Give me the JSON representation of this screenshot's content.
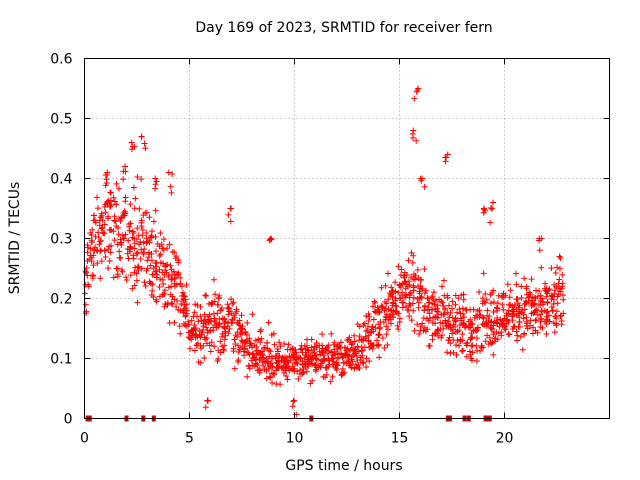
{
  "chart_data": {
    "type": "scatter",
    "title": "Day 169 of 2023, SRMTID for receiver fern",
    "xlabel": "GPS time / hours",
    "ylabel": "SRMTID / TECUs",
    "xlim": [
      0,
      25
    ],
    "ylim": [
      0,
      0.6
    ],
    "xticks": [
      0,
      5,
      10,
      15,
      20
    ],
    "xtick_labels": [
      "0",
      "5",
      "10",
      "15",
      "20"
    ],
    "yticks": [
      0,
      0.1,
      0.2,
      0.3,
      0.4,
      0.5,
      0.6
    ],
    "ytick_labels": [
      "0",
      "0.1",
      "0.2",
      "0.3",
      "0.4",
      "0.5",
      "0.6"
    ],
    "grid": true,
    "marker": "+",
    "color": "#ff0000",
    "series": [
      {
        "name": "SRMTID",
        "x": [
          0.0,
          0.2,
          0.4,
          0.6,
          0.8,
          1.0,
          1.2,
          1.4,
          1.6,
          1.8,
          2.0,
          2.2,
          2.4,
          2.6,
          2.8,
          3.0,
          3.2,
          3.4,
          3.6,
          3.8,
          4.0,
          4.2,
          4.4,
          4.6,
          4.8,
          5.0,
          5.2,
          5.4,
          5.6,
          5.8,
          6.0,
          6.2,
          6.4,
          6.6,
          6.8,
          7.0,
          7.2,
          7.4,
          7.6,
          7.8,
          8.0,
          8.2,
          8.4,
          8.6,
          8.8,
          9.0,
          9.2,
          9.4,
          9.6,
          9.8,
          10.0,
          10.2,
          10.4,
          10.6,
          10.8,
          11.0,
          11.2,
          11.4,
          11.6,
          11.8,
          12.0,
          12.2,
          12.4,
          12.6,
          12.8,
          13.0,
          13.2,
          13.4,
          13.6,
          13.8,
          14.0,
          14.2,
          14.4,
          14.6,
          14.8,
          15.0,
          15.2,
          15.4,
          15.6,
          15.8,
          16.0,
          16.2,
          16.4,
          16.6,
          16.8,
          17.0,
          17.2,
          17.4,
          17.6,
          17.8,
          18.0,
          18.2,
          18.4,
          18.6,
          18.8,
          19.0,
          19.2,
          19.4,
          19.6,
          19.8,
          20.0,
          20.2,
          20.4,
          20.6,
          20.8,
          21.0,
          21.2,
          21.4,
          21.6,
          21.8,
          22.0,
          22.2,
          22.4,
          22.6,
          22.8
        ],
        "y": [
          0.22,
          0.26,
          0.28,
          0.3,
          0.32,
          0.34,
          0.33,
          0.32,
          0.31,
          0.32,
          0.31,
          0.3,
          0.31,
          0.3,
          0.29,
          0.28,
          0.27,
          0.26,
          0.25,
          0.24,
          0.24,
          0.23,
          0.22,
          0.2,
          0.18,
          0.16,
          0.15,
          0.14,
          0.14,
          0.15,
          0.16,
          0.17,
          0.16,
          0.15,
          0.15,
          0.16,
          0.15,
          0.14,
          0.13,
          0.12,
          0.12,
          0.11,
          0.11,
          0.11,
          0.1,
          0.1,
          0.09,
          0.09,
          0.09,
          0.09,
          0.09,
          0.09,
          0.1,
          0.1,
          0.1,
          0.1,
          0.1,
          0.1,
          0.1,
          0.1,
          0.1,
          0.1,
          0.1,
          0.1,
          0.11,
          0.11,
          0.12,
          0.13,
          0.14,
          0.15,
          0.16,
          0.17,
          0.18,
          0.19,
          0.2,
          0.2,
          0.21,
          0.22,
          0.21,
          0.2,
          0.19,
          0.19,
          0.18,
          0.18,
          0.17,
          0.17,
          0.16,
          0.16,
          0.16,
          0.15,
          0.15,
          0.15,
          0.15,
          0.16,
          0.16,
          0.17,
          0.17,
          0.17,
          0.17,
          0.17,
          0.17,
          0.18,
          0.18,
          0.18,
          0.18,
          0.18,
          0.18,
          0.18,
          0.18,
          0.18,
          0.18,
          0.18,
          0.19,
          0.19,
          0.19
        ],
        "spread": [
          0.05,
          0.06,
          0.07,
          0.07,
          0.08,
          0.08,
          0.08,
          0.07,
          0.07,
          0.07,
          0.07,
          0.08,
          0.08,
          0.08,
          0.07,
          0.07,
          0.07,
          0.07,
          0.06,
          0.06,
          0.06,
          0.06,
          0.06,
          0.05,
          0.05,
          0.05,
          0.05,
          0.05,
          0.05,
          0.05,
          0.05,
          0.05,
          0.05,
          0.05,
          0.05,
          0.05,
          0.05,
          0.04,
          0.04,
          0.04,
          0.04,
          0.04,
          0.04,
          0.04,
          0.04,
          0.04,
          0.04,
          0.03,
          0.03,
          0.03,
          0.03,
          0.03,
          0.03,
          0.03,
          0.03,
          0.03,
          0.03,
          0.03,
          0.03,
          0.03,
          0.03,
          0.03,
          0.03,
          0.03,
          0.03,
          0.04,
          0.04,
          0.04,
          0.04,
          0.05,
          0.05,
          0.05,
          0.05,
          0.05,
          0.05,
          0.05,
          0.05,
          0.05,
          0.05,
          0.05,
          0.05,
          0.05,
          0.05,
          0.05,
          0.05,
          0.05,
          0.05,
          0.05,
          0.05,
          0.05,
          0.05,
          0.05,
          0.05,
          0.05,
          0.05,
          0.05,
          0.05,
          0.05,
          0.05,
          0.05,
          0.05,
          0.05,
          0.05,
          0.05,
          0.05,
          0.05,
          0.05,
          0.05,
          0.05,
          0.05,
          0.05,
          0.05,
          0.05,
          0.05,
          0.05
        ],
        "peaks": [
          {
            "x": 1.0,
            "y": 0.41
          },
          {
            "x": 1.9,
            "y": 0.42
          },
          {
            "x": 2.3,
            "y": 0.46
          },
          {
            "x": 2.8,
            "y": 0.47
          },
          {
            "x": 3.4,
            "y": 0.4
          },
          {
            "x": 4.1,
            "y": 0.41
          },
          {
            "x": 6.9,
            "y": 0.35
          },
          {
            "x": 8.9,
            "y": 0.3
          },
          {
            "x": 15.8,
            "y": 0.55
          },
          {
            "x": 15.7,
            "y": 0.48
          },
          {
            "x": 16.1,
            "y": 0.4
          },
          {
            "x": 17.2,
            "y": 0.44
          },
          {
            "x": 19.1,
            "y": 0.35
          },
          {
            "x": 19.4,
            "y": 0.36
          },
          {
            "x": 21.7,
            "y": 0.3
          },
          {
            "x": 22.6,
            "y": 0.27
          },
          {
            "x": 5.8,
            "y": 0.03
          },
          {
            "x": 10.0,
            "y": 0.03
          }
        ]
      }
    ],
    "zero_markers_x": [
      0.15,
      0.25,
      2.0,
      2.8,
      3.3,
      10.8,
      17.3,
      17.4,
      18.1,
      18.3,
      19.1,
      19.2,
      19.3
    ]
  }
}
